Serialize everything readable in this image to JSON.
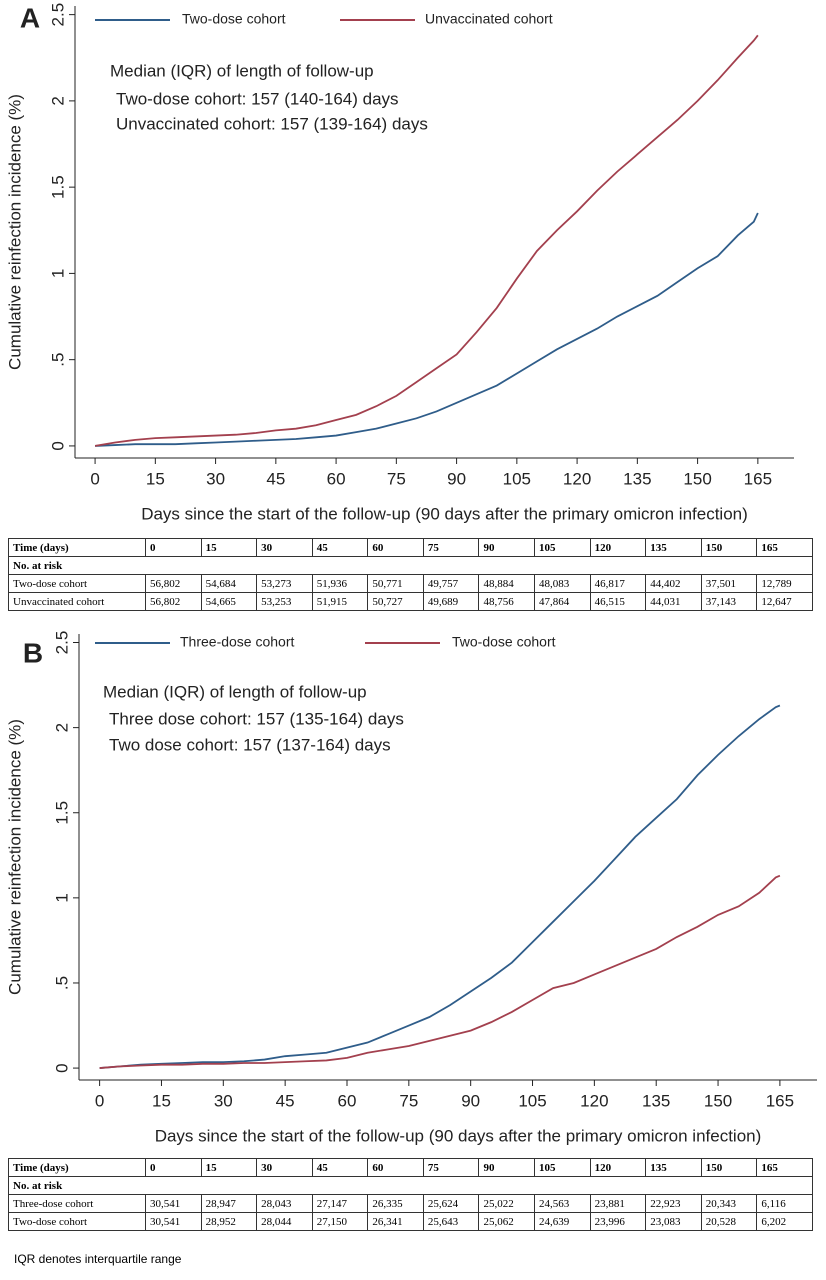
{
  "chart_data": [
    {
      "type": "line",
      "panel_label": "A",
      "y_label": "Cumulative reinfection incidence (%)",
      "x_label": "Days since the start of the follow-up (90 days after the primary omicron infection)",
      "annotation": [
        "Median (IQR) of length of follow-up",
        "Two-dose cohort: 157 (140-164) days",
        "Unvaccinated cohort: 157 (139-164) days"
      ],
      "x": [
        0,
        5,
        10,
        15,
        20,
        25,
        30,
        35,
        40,
        45,
        50,
        55,
        60,
        65,
        70,
        75,
        80,
        85,
        90,
        95,
        100,
        105,
        110,
        115,
        120,
        125,
        130,
        135,
        140,
        145,
        150,
        155,
        160,
        164,
        165
      ],
      "series": [
        {
          "name": "Two-dose cohort",
          "color": "#2f5d8a",
          "values": [
            0,
            0.005,
            0.01,
            0.01,
            0.01,
            0.015,
            0.02,
            0.025,
            0.03,
            0.035,
            0.04,
            0.05,
            0.06,
            0.08,
            0.1,
            0.13,
            0.16,
            0.2,
            0.25,
            0.3,
            0.35,
            0.42,
            0.49,
            0.56,
            0.62,
            0.68,
            0.75,
            0.81,
            0.87,
            0.95,
            1.03,
            1.1,
            1.22,
            1.3,
            1.35
          ]
        },
        {
          "name": "Unvaccinated cohort",
          "color": "#a3404e",
          "values": [
            0,
            0.02,
            0.035,
            0.045,
            0.05,
            0.055,
            0.06,
            0.065,
            0.075,
            0.09,
            0.1,
            0.12,
            0.15,
            0.18,
            0.23,
            0.29,
            0.37,
            0.45,
            0.53,
            0.66,
            0.8,
            0.97,
            1.13,
            1.25,
            1.36,
            1.48,
            1.59,
            1.69,
            1.79,
            1.89,
            2.0,
            2.12,
            2.25,
            2.35,
            2.38
          ]
        }
      ],
      "xlim": [
        -5,
        174
      ],
      "ylim": [
        -0.07,
        2.55
      ],
      "xticks": [
        0,
        15,
        30,
        45,
        60,
        75,
        90,
        105,
        120,
        135,
        150,
        165
      ],
      "yticks": [
        0,
        {
          "value": 0.5,
          "label": ".5"
        },
        1,
        1.5,
        2,
        2.5
      ],
      "legend": "top"
    },
    {
      "type": "line",
      "panel_label": "B",
      "y_label": "Cumulative reinfection incidence (%)",
      "x_label": "Days since the start of the follow-up (90 days after the primary omicron infection)",
      "annotation": [
        "Median (IQR) of length of follow-up",
        "Three dose cohort: 157 (135-164) days",
        "Two dose cohort: 157 (137-164) days"
      ],
      "x": [
        0,
        5,
        10,
        15,
        20,
        25,
        30,
        35,
        40,
        45,
        50,
        55,
        60,
        65,
        70,
        75,
        80,
        85,
        90,
        95,
        100,
        105,
        110,
        115,
        120,
        125,
        130,
        135,
        140,
        145,
        150,
        155,
        160,
        164,
        165
      ],
      "series": [
        {
          "name": "Three-dose cohort",
          "color": "#2f5d8a",
          "values": [
            0,
            0.01,
            0.02,
            0.025,
            0.03,
            0.035,
            0.035,
            0.04,
            0.05,
            0.07,
            0.08,
            0.09,
            0.12,
            0.15,
            0.2,
            0.25,
            0.3,
            0.37,
            0.45,
            0.53,
            0.62,
            0.74,
            0.86,
            0.98,
            1.1,
            1.23,
            1.36,
            1.47,
            1.58,
            1.72,
            1.84,
            1.95,
            2.05,
            2.12,
            2.13
          ]
        },
        {
          "name": "Two-dose cohort",
          "color": "#a3404e",
          "values": [
            0,
            0.01,
            0.015,
            0.02,
            0.02,
            0.025,
            0.025,
            0.03,
            0.03,
            0.035,
            0.04,
            0.045,
            0.06,
            0.09,
            0.11,
            0.13,
            0.16,
            0.19,
            0.22,
            0.27,
            0.33,
            0.4,
            0.47,
            0.5,
            0.55,
            0.6,
            0.65,
            0.7,
            0.77,
            0.83,
            0.9,
            0.95,
            1.03,
            1.12,
            1.13
          ]
        }
      ],
      "xlim": [
        -5,
        174
      ],
      "ylim": [
        -0.07,
        2.55
      ],
      "xticks": [
        0,
        15,
        30,
        45,
        60,
        75,
        90,
        105,
        120,
        135,
        150,
        165
      ],
      "yticks": [
        0,
        {
          "value": 0.5,
          "label": ".5"
        },
        1,
        1.5,
        2,
        2.5
      ],
      "legend": "top"
    }
  ],
  "tables": [
    {
      "header": [
        "Time (days)",
        "0",
        "15",
        "30",
        "45",
        "60",
        "75",
        "90",
        "105",
        "120",
        "135",
        "150",
        "165"
      ],
      "subheader": "No. at risk",
      "rows": [
        [
          "Two-dose cohort",
          "56,802",
          "54,684",
          "53,273",
          "51,936",
          "50,771",
          "49,757",
          "48,884",
          "48,083",
          "46,817",
          "44,402",
          "37,501",
          "12,789"
        ],
        [
          "Unvaccinated cohort",
          "56,802",
          "54,665",
          "53,253",
          "51,915",
          "50,727",
          "49,689",
          "48,756",
          "47,864",
          "46,515",
          "44,031",
          "37,143",
          "12,647"
        ]
      ]
    },
    {
      "header": [
        "Time (days)",
        "0",
        "15",
        "30",
        "45",
        "60",
        "75",
        "90",
        "105",
        "120",
        "135",
        "150",
        "165"
      ],
      "subheader": "No. at risk",
      "rows": [
        [
          "Three-dose cohort",
          "30,541",
          "28,947",
          "28,043",
          "27,147",
          "26,335",
          "25,624",
          "25,022",
          "24,563",
          "23,881",
          "22,923",
          "20,343",
          "6,116"
        ],
        [
          "Two-dose cohort",
          "30,541",
          "28,952",
          "28,044",
          "27,150",
          "26,341",
          "25,643",
          "25,062",
          "24,639",
          "23,996",
          "23,083",
          "20,528",
          "6,202"
        ]
      ]
    }
  ],
  "footnote": "IQR denotes interquartile range"
}
